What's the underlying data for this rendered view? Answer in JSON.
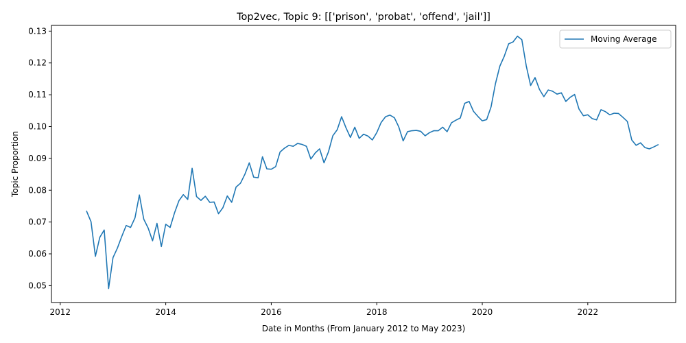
{
  "chart_data": {
    "type": "line",
    "title": "Top2vec, Topic 9: [['prison', 'probat', 'offend', 'jail']]",
    "xlabel": "Date in Months (From January 2012 to May 2023)",
    "ylabel": "Topic Proportion",
    "x_tick_labels": [
      "2012",
      "2014",
      "2016",
      "2018",
      "2020",
      "2022"
    ],
    "y_tick_labels": [
      "0.05",
      "0.06",
      "0.07",
      "0.08",
      "0.09",
      "0.10",
      "0.11",
      "0.12",
      "0.13"
    ],
    "xlim": [
      "2011-11",
      "2023-09"
    ],
    "ylim": [
      0.0447,
      0.1318
    ],
    "grid": false,
    "legend_position": "top-right",
    "series": [
      {
        "name": "Moving Average",
        "color": "#1f77b4",
        "points": [
          [
            "2012-07",
            0.0734
          ],
          [
            "2012-08",
            0.0701
          ],
          [
            "2012-09",
            0.0592
          ],
          [
            "2012-10",
            0.0652
          ],
          [
            "2012-11",
            0.0675
          ],
          [
            "2012-12",
            0.0491
          ],
          [
            "2013-01",
            0.0588
          ],
          [
            "2013-02",
            0.0618
          ],
          [
            "2013-03",
            0.0655
          ],
          [
            "2013-04",
            0.0689
          ],
          [
            "2013-05",
            0.0683
          ],
          [
            "2013-06",
            0.0713
          ],
          [
            "2013-07",
            0.0785
          ],
          [
            "2013-08",
            0.0709
          ],
          [
            "2013-09",
            0.0681
          ],
          [
            "2013-10",
            0.0641
          ],
          [
            "2013-11",
            0.0696
          ],
          [
            "2013-12",
            0.0623
          ],
          [
            "2014-01",
            0.0693
          ],
          [
            "2014-02",
            0.0683
          ],
          [
            "2014-03",
            0.0729
          ],
          [
            "2014-04",
            0.0767
          ],
          [
            "2014-05",
            0.0786
          ],
          [
            "2014-06",
            0.0771
          ],
          [
            "2014-07",
            0.0869
          ],
          [
            "2014-08",
            0.078
          ],
          [
            "2014-09",
            0.0768
          ],
          [
            "2014-10",
            0.0781
          ],
          [
            "2014-11",
            0.0762
          ],
          [
            "2014-12",
            0.0763
          ],
          [
            "2015-01",
            0.0726
          ],
          [
            "2015-02",
            0.0745
          ],
          [
            "2015-03",
            0.0782
          ],
          [
            "2015-04",
            0.0762
          ],
          [
            "2015-05",
            0.081
          ],
          [
            "2015-06",
            0.0822
          ],
          [
            "2015-07",
            0.085
          ],
          [
            "2015-08",
            0.0886
          ],
          [
            "2015-09",
            0.0841
          ],
          [
            "2015-10",
            0.0839
          ],
          [
            "2015-11",
            0.0905
          ],
          [
            "2015-12",
            0.0867
          ],
          [
            "2016-01",
            0.0866
          ],
          [
            "2016-02",
            0.0874
          ],
          [
            "2016-03",
            0.092
          ],
          [
            "2016-04",
            0.0932
          ],
          [
            "2016-05",
            0.0941
          ],
          [
            "2016-06",
            0.0938
          ],
          [
            "2016-07",
            0.0947
          ],
          [
            "2016-08",
            0.0944
          ],
          [
            "2016-09",
            0.0938
          ],
          [
            "2016-10",
            0.0898
          ],
          [
            "2016-11",
            0.0917
          ],
          [
            "2016-12",
            0.093
          ],
          [
            "2017-01",
            0.0886
          ],
          [
            "2017-02",
            0.092
          ],
          [
            "2017-03",
            0.0971
          ],
          [
            "2017-04",
            0.099
          ],
          [
            "2017-05",
            0.1031
          ],
          [
            "2017-06",
            0.0996
          ],
          [
            "2017-07",
            0.0966
          ],
          [
            "2017-08",
            0.0998
          ],
          [
            "2017-09",
            0.0963
          ],
          [
            "2017-10",
            0.0976
          ],
          [
            "2017-11",
            0.097
          ],
          [
            "2017-12",
            0.0958
          ],
          [
            "2018-01",
            0.0981
          ],
          [
            "2018-02",
            0.1013
          ],
          [
            "2018-03",
            0.1031
          ],
          [
            "2018-04",
            0.1036
          ],
          [
            "2018-05",
            0.1028
          ],
          [
            "2018-06",
            0.0999
          ],
          [
            "2018-07",
            0.0955
          ],
          [
            "2018-08",
            0.0984
          ],
          [
            "2018-09",
            0.0987
          ],
          [
            "2018-10",
            0.0988
          ],
          [
            "2018-11",
            0.0985
          ],
          [
            "2018-12",
            0.0971
          ],
          [
            "2019-01",
            0.0981
          ],
          [
            "2019-02",
            0.0987
          ],
          [
            "2019-03",
            0.0987
          ],
          [
            "2019-04",
            0.0998
          ],
          [
            "2019-05",
            0.0984
          ],
          [
            "2019-06",
            0.1012
          ],
          [
            "2019-07",
            0.102
          ],
          [
            "2019-08",
            0.1027
          ],
          [
            "2019-09",
            0.1073
          ],
          [
            "2019-10",
            0.1079
          ],
          [
            "2019-11",
            0.1048
          ],
          [
            "2019-12",
            0.1032
          ],
          [
            "2020-01",
            0.1018
          ],
          [
            "2020-02",
            0.1022
          ],
          [
            "2020-03",
            0.1062
          ],
          [
            "2020-04",
            0.1135
          ],
          [
            "2020-05",
            0.119
          ],
          [
            "2020-06",
            0.1221
          ],
          [
            "2020-07",
            0.126
          ],
          [
            "2020-08",
            0.1266
          ],
          [
            "2020-09",
            0.1284
          ],
          [
            "2020-10",
            0.1273
          ],
          [
            "2020-11",
            0.1191
          ],
          [
            "2020-12",
            0.1129
          ],
          [
            "2021-01",
            0.1154
          ],
          [
            "2021-02",
            0.1117
          ],
          [
            "2021-03",
            0.1094
          ],
          [
            "2021-04",
            0.1115
          ],
          [
            "2021-05",
            0.1111
          ],
          [
            "2021-06",
            0.1102
          ],
          [
            "2021-07",
            0.1106
          ],
          [
            "2021-08",
            0.1079
          ],
          [
            "2021-09",
            0.1092
          ],
          [
            "2021-10",
            0.1101
          ],
          [
            "2021-11",
            0.1055
          ],
          [
            "2021-12",
            0.1034
          ],
          [
            "2022-01",
            0.1037
          ],
          [
            "2022-02",
            0.1025
          ],
          [
            "2022-03",
            0.1021
          ],
          [
            "2022-04",
            0.1053
          ],
          [
            "2022-05",
            0.1047
          ],
          [
            "2022-06",
            0.1037
          ],
          [
            "2022-07",
            0.1042
          ],
          [
            "2022-08",
            0.1041
          ],
          [
            "2022-09",
            0.1029
          ],
          [
            "2022-10",
            0.1016
          ],
          [
            "2022-11",
            0.0958
          ],
          [
            "2022-12",
            0.0941
          ],
          [
            "2023-01",
            0.0949
          ],
          [
            "2023-02",
            0.0934
          ],
          [
            "2023-03",
            0.093
          ],
          [
            "2023-04",
            0.0936
          ],
          [
            "2023-05",
            0.0943
          ]
        ]
      }
    ]
  }
}
